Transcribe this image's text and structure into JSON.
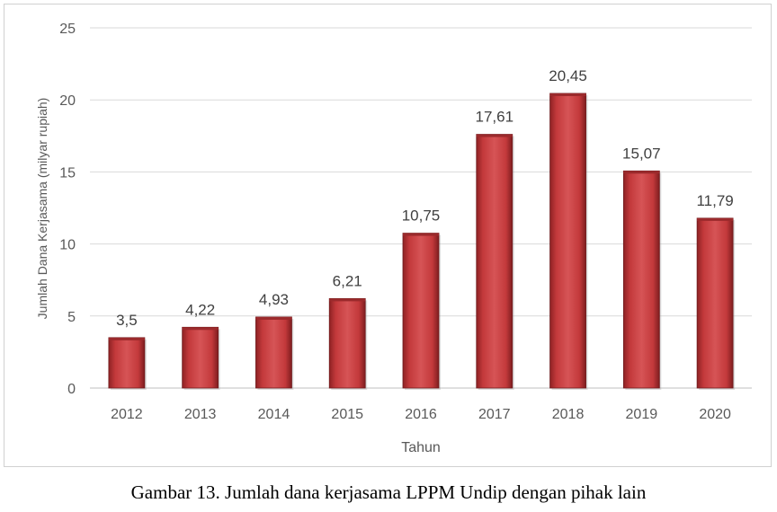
{
  "chart_data": {
    "type": "bar",
    "title": "",
    "xlabel": "Tahun",
    "ylabel": "Jumlah Dana Kerjasama (milyar rupiah)",
    "categories": [
      "2012",
      "2013",
      "2014",
      "2015",
      "2016",
      "2017",
      "2018",
      "2019",
      "2020"
    ],
    "values": [
      3.5,
      4.22,
      4.93,
      6.21,
      10.75,
      17.61,
      20.45,
      15.07,
      11.79
    ],
    "value_labels": [
      "3,5",
      "4,22",
      "4,93",
      "6,21",
      "10,75",
      "17,61",
      "20,45",
      "15,07",
      "11,79"
    ],
    "ylim": [
      0,
      25
    ],
    "yticks": [
      0,
      5,
      10,
      15,
      20,
      25
    ],
    "grid": true,
    "legend": "none",
    "bar_color": "#c0393b"
  },
  "caption": "Gambar 13. Jumlah dana kerjasama LPPM Undip dengan pihak lain"
}
